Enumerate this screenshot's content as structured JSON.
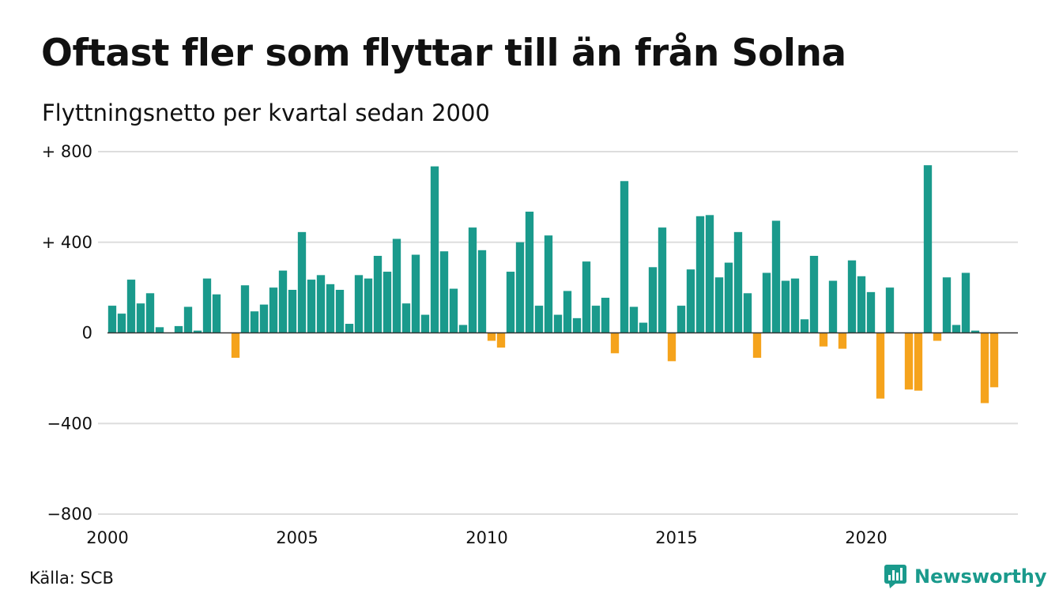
{
  "title": "Oftast fler som flyttar till än från Solna",
  "subtitle": "Flyttningsnetto per kvartal sedan 2000",
  "source": "Källa: SCB",
  "brand": {
    "name": "Newsworthy",
    "icon": "chart-bubble-icon"
  },
  "colors": {
    "positive": "#1a9a8c",
    "negative": "#f5a31c",
    "grid": "#dddddd",
    "zero_line": "#333333",
    "brand": "#1a9a8c"
  },
  "chart_data": {
    "type": "bar",
    "title": "Oftast fler som flyttar till än från Solna",
    "subtitle": "Flyttningsnetto per kvartal sedan 2000",
    "ylim": [
      -800,
      800
    ],
    "y_ticks": [
      800,
      400,
      0,
      -400,
      -800
    ],
    "y_tick_labels": [
      "+ 800",
      "+ 400",
      "0",
      "−400",
      "−800"
    ],
    "x_ticks": [
      "2000",
      "2005",
      "2010",
      "2015",
      "2020"
    ],
    "x_range": [
      "2000 Q1",
      "2023 Q4"
    ],
    "grid": true,
    "legend": "none",
    "categories": [
      "2000 Q1",
      "2000 Q2",
      "2000 Q3",
      "2000 Q4",
      "2001 Q1",
      "2001 Q2",
      "2001 Q3",
      "2001 Q4",
      "2002 Q1",
      "2002 Q2",
      "2002 Q3",
      "2002 Q4",
      "2003 Q1",
      "2003 Q2",
      "2003 Q3",
      "2003 Q4",
      "2004 Q1",
      "2004 Q2",
      "2004 Q3",
      "2004 Q4",
      "2005 Q1",
      "2005 Q2",
      "2005 Q3",
      "2005 Q4",
      "2006 Q1",
      "2006 Q2",
      "2006 Q3",
      "2006 Q4",
      "2007 Q1",
      "2007 Q2",
      "2007 Q3",
      "2007 Q4",
      "2008 Q1",
      "2008 Q2",
      "2008 Q3",
      "2008 Q4",
      "2009 Q1",
      "2009 Q2",
      "2009 Q3",
      "2009 Q4",
      "2010 Q1",
      "2010 Q2",
      "2010 Q3",
      "2010 Q4",
      "2011 Q1",
      "2011 Q2",
      "2011 Q3",
      "2011 Q4",
      "2012 Q1",
      "2012 Q2",
      "2012 Q3",
      "2012 Q4",
      "2013 Q1",
      "2013 Q2",
      "2013 Q3",
      "2013 Q4",
      "2014 Q1",
      "2014 Q2",
      "2014 Q3",
      "2014 Q4",
      "2015 Q1",
      "2015 Q2",
      "2015 Q3",
      "2015 Q4",
      "2016 Q1",
      "2016 Q2",
      "2016 Q3",
      "2016 Q4",
      "2017 Q1",
      "2017 Q2",
      "2017 Q3",
      "2017 Q4",
      "2018 Q1",
      "2018 Q2",
      "2018 Q3",
      "2018 Q4",
      "2019 Q1",
      "2019 Q2",
      "2019 Q3",
      "2019 Q4",
      "2020 Q1",
      "2020 Q2",
      "2020 Q3",
      "2020 Q4",
      "2021 Q1",
      "2021 Q2",
      "2021 Q3",
      "2021 Q4",
      "2022 Q1",
      "2022 Q2",
      "2022 Q3",
      "2022 Q4",
      "2023 Q1",
      "2023 Q2",
      "2023 Q3",
      "2023 Q4"
    ],
    "values": [
      120,
      85,
      235,
      130,
      175,
      25,
      0,
      30,
      115,
      10,
      240,
      170,
      0,
      -110,
      210,
      95,
      125,
      200,
      275,
      190,
      445,
      235,
      255,
      215,
      190,
      40,
      255,
      240,
      340,
      270,
      415,
      130,
      345,
      80,
      735,
      360,
      195,
      35,
      465,
      365,
      -35,
      -65,
      270,
      400,
      535,
      120,
      430,
      80,
      185,
      65,
      315,
      120,
      155,
      -90,
      670,
      115,
      45,
      290,
      465,
      -125,
      120,
      280,
      515,
      520,
      245,
      310,
      445,
      175,
      -110,
      265,
      495,
      230,
      240,
      60,
      340,
      -60,
      230,
      -70,
      320,
      250,
      180,
      -290,
      200,
      0,
      -250,
      -255,
      740,
      -35,
      245,
      35,
      265,
      10,
      -310,
      -240,
      0,
      0
    ]
  }
}
